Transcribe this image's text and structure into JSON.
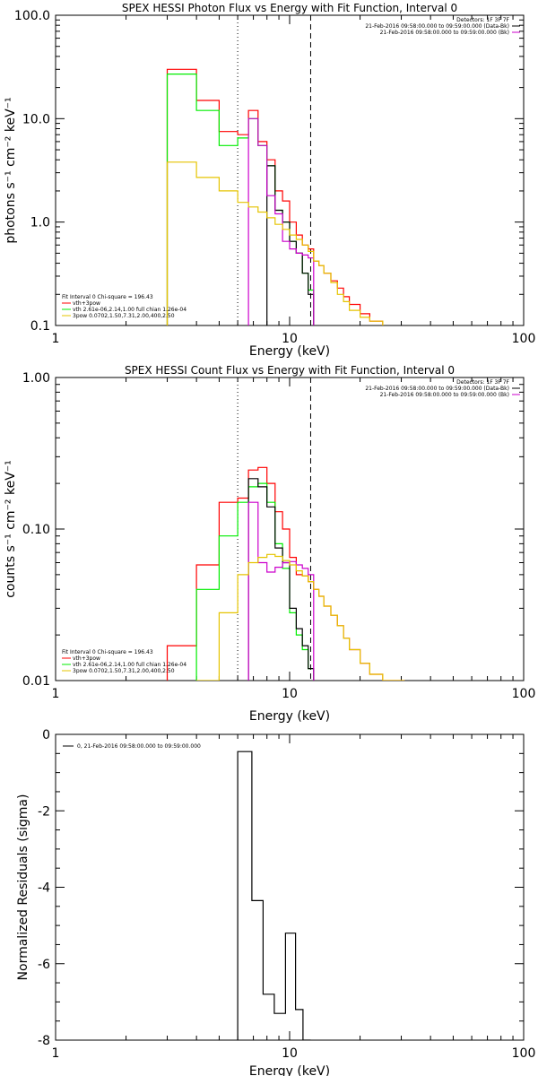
{
  "colors": {
    "black": "#000000",
    "red": "#ff0000",
    "green": "#00ee00",
    "magenta": "#cc00cc",
    "yellow": "#e5c400"
  },
  "chart_data": [
    {
      "type": "line",
      "step": true,
      "title": "SPEX HESSI Photon Flux vs Energy with Fit Function, Interval 0",
      "xlabel": "Energy (keV)",
      "ylabel": "photons s⁻¹ cm⁻² keV⁻¹",
      "xlog": true,
      "ylog": true,
      "xlim": [
        1,
        100
      ],
      "ylim": [
        0.1,
        100
      ],
      "xticks": [
        {
          "v": 1,
          "label": "1"
        },
        {
          "v": 10,
          "label": "10"
        },
        {
          "v": 100,
          "label": "100"
        }
      ],
      "yticks": [
        {
          "v": 0.1,
          "label": "0.1"
        },
        {
          "v": 1,
          "label": "1.0"
        },
        {
          "v": 10,
          "label": "10.0"
        },
        {
          "v": 100,
          "label": "100.0"
        }
      ],
      "vlines": [
        {
          "x": 6.0,
          "style": "dotted"
        },
        {
          "x": 12.3,
          "style": "dashed"
        }
      ],
      "edges": [
        3,
        4,
        5,
        6,
        6.67,
        7.33,
        8,
        8.67,
        9.33,
        10,
        10.67,
        11.33,
        12,
        12.67,
        13.33,
        14,
        15,
        16,
        17,
        18,
        20,
        22,
        25
      ],
      "series": [
        {
          "color_key": "red",
          "values": [
            30,
            15,
            7.5,
            7.0,
            12,
            6,
            4,
            2,
            1.6,
            1.0,
            0.75,
            0.6,
            0.55,
            0.42,
            0.38,
            0.32,
            0.27,
            0.23,
            0.19,
            0.16,
            0.13,
            0.11
          ]
        },
        {
          "color_key": "green",
          "values": [
            27,
            12,
            5.5,
            6.5,
            10,
            5.5,
            3.5,
            1.3,
            1.0,
            0.65,
            0.5,
            0.32,
            0.22,
            null,
            null,
            null,
            null,
            null,
            null,
            null,
            null,
            null
          ]
        },
        {
          "color_key": "black",
          "values": [
            null,
            null,
            null,
            null,
            null,
            null,
            3.5,
            1.3,
            1.0,
            0.65,
            0.5,
            0.32,
            0.2,
            null,
            null,
            null,
            null,
            null,
            null,
            null,
            null,
            null
          ]
        },
        {
          "color_key": "magenta",
          "values": [
            null,
            null,
            null,
            null,
            10,
            5.5,
            1.8,
            1.2,
            0.65,
            0.55,
            0.5,
            0.48,
            0.45,
            null,
            null,
            null,
            null,
            null,
            null,
            null,
            null,
            null
          ]
        },
        {
          "color_key": "yellow",
          "values": [
            3.8,
            2.7,
            2.0,
            1.55,
            1.4,
            1.25,
            1.1,
            0.95,
            0.85,
            0.75,
            0.68,
            0.6,
            0.52,
            0.42,
            0.38,
            0.32,
            0.26,
            0.2,
            0.17,
            0.14,
            0.12,
            0.11
          ]
        }
      ],
      "legend_top": {
        "lines": [
          {
            "text": "Detectors: 1F 3F 7F",
            "color_key": null
          },
          {
            "text": "21-Feb-2016 09:58:00.000 to 09:59:00.000 (Data-Bk)",
            "color_key": "black"
          },
          {
            "text": "21-Feb-2016 09:58:00.000 to 09:59:00.000 (Bk)",
            "color_key": "magenta"
          }
        ]
      },
      "legend_bottom": {
        "lines": [
          {
            "text": "Fit Interval 0   Chi-square = 196.43",
            "color_key": null
          },
          {
            "text": "vth+3pow",
            "color_key": "red"
          },
          {
            "text": "vth 2.61e-06,2.14,1.00  full chian 1.26e-04",
            "color_key": "green"
          },
          {
            "text": "3pow 0.0702,1.50,7.31,2.00,400,2.50",
            "color_key": "yellow"
          }
        ]
      }
    },
    {
      "type": "line",
      "step": true,
      "title": "SPEX HESSI Count Flux vs Energy with Fit Function, Interval 0",
      "xlabel": "Energy (keV)",
      "ylabel": "counts s⁻¹ cm⁻² keV⁻¹",
      "xlog": true,
      "ylog": true,
      "xlim": [
        1,
        100
      ],
      "ylim": [
        0.01,
        1
      ],
      "xticks": [
        {
          "v": 1,
          "label": "1"
        },
        {
          "v": 10,
          "label": "10"
        },
        {
          "v": 100,
          "label": "100"
        }
      ],
      "yticks": [
        {
          "v": 0.01,
          "label": "0.01"
        },
        {
          "v": 0.1,
          "label": "0.10"
        },
        {
          "v": 1,
          "label": "1.00"
        }
      ],
      "vlines": [
        {
          "x": 6.0,
          "style": "dotted"
        },
        {
          "x": 12.3,
          "style": "dashed"
        }
      ],
      "edges": [
        3,
        4,
        5,
        6,
        6.67,
        7.33,
        8,
        8.67,
        9.33,
        10,
        10.67,
        11.33,
        12,
        12.67,
        13.33,
        14,
        15,
        16,
        17,
        18,
        20,
        22,
        25,
        28,
        31
      ],
      "series": [
        {
          "color_key": "red",
          "values": [
            0.017,
            0.058,
            0.15,
            0.16,
            0.245,
            0.255,
            0.2,
            0.13,
            0.1,
            0.065,
            0.05,
            0.049,
            0.045,
            0.04,
            0.036,
            0.031,
            0.027,
            0.023,
            0.019,
            0.016,
            0.013,
            0.011,
            0.01,
            0.01
          ]
        },
        {
          "color_key": "green",
          "values": [
            null,
            0.04,
            0.09,
            0.15,
            0.19,
            0.2,
            0.15,
            0.08,
            0.055,
            0.028,
            0.02,
            0.016,
            0.012,
            null,
            null,
            null,
            null,
            null,
            null,
            null,
            null,
            null,
            null,
            null
          ]
        },
        {
          "color_key": "black",
          "values": [
            null,
            null,
            null,
            null,
            0.215,
            0.19,
            0.14,
            0.075,
            0.06,
            0.03,
            0.022,
            0.017,
            0.012,
            null,
            null,
            null,
            null,
            null,
            null,
            null,
            null,
            null,
            null,
            null
          ]
        },
        {
          "color_key": "magenta",
          "values": [
            null,
            null,
            null,
            null,
            0.15,
            0.06,
            0.052,
            0.056,
            0.06,
            0.061,
            0.058,
            0.055,
            0.05,
            null,
            null,
            null,
            null,
            null,
            null,
            null,
            null,
            null,
            null,
            null
          ]
        },
        {
          "color_key": "yellow",
          "values": [
            null,
            0.01,
            0.028,
            0.05,
            0.06,
            0.065,
            0.068,
            0.066,
            0.062,
            0.058,
            0.053,
            0.049,
            0.045,
            0.04,
            0.036,
            0.031,
            0.027,
            0.023,
            0.019,
            0.016,
            0.013,
            0.011,
            0.01,
            0.01
          ]
        }
      ],
      "legend_top": {
        "lines": [
          {
            "text": "Detectors: 1F 3F 7F",
            "color_key": null
          },
          {
            "text": "21-Feb-2016 09:58:00.000 to 09:59:00.000 (Data-Bk)",
            "color_key": "black"
          },
          {
            "text": "21-Feb-2016 09:58:00.000 to 09:59:00.000 (Bk)",
            "color_key": "magenta"
          }
        ]
      },
      "legend_bottom": {
        "lines": [
          {
            "text": "Fit Interval 0   Chi-square = 196.43",
            "color_key": null
          },
          {
            "text": "vth+3pow",
            "color_key": "red"
          },
          {
            "text": "vth 2.61e-06,2.14,1.00  full chian 1.26e-04",
            "color_key": "green"
          },
          {
            "text": "3pow 0.0702,1.50,7.31,2.00,400,2.50",
            "color_key": "yellow"
          }
        ]
      }
    },
    {
      "type": "line",
      "step": true,
      "title": "",
      "xlabel": "Energy (keV)",
      "ylabel": "Normalized Residuals (sigma)",
      "xlog": true,
      "ylog": false,
      "xlim": [
        1,
        100
      ],
      "ylim": [
        -8,
        0
      ],
      "xticks": [
        {
          "v": 1,
          "label": "1"
        },
        {
          "v": 10,
          "label": "10"
        },
        {
          "v": 100,
          "label": "100"
        }
      ],
      "yticks": [
        {
          "v": -8,
          "label": "-8"
        },
        {
          "v": -6,
          "label": "-6"
        },
        {
          "v": -4,
          "label": "-4"
        },
        {
          "v": -2,
          "label": "-2"
        },
        {
          "v": 0,
          "label": "0"
        }
      ],
      "vlines": [],
      "edges": [
        6.0,
        6.9,
        7.7,
        8.6,
        9.6,
        10.6,
        11.4,
        12.3
      ],
      "series": [
        {
          "color_key": "black",
          "values": [
            -0.45,
            -4.35,
            -6.8,
            -7.3,
            -5.2,
            -7.2,
            -8.0
          ]
        }
      ],
      "legend_top": {
        "lines": [
          {
            "text": "0, 21-Feb-2016 09:58:00.000 to 09:59:00.000",
            "color_key": "black"
          }
        ]
      },
      "legend_bottom": {
        "lines": []
      }
    }
  ]
}
